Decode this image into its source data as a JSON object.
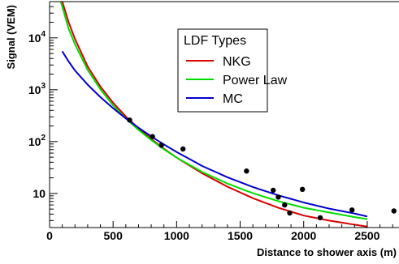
{
  "chart_data": {
    "type": "scatter",
    "xlabel": "Distance to shower axis (m)",
    "ylabel": "Signal (VEM)",
    "x_ticks": [
      {
        "value": 0,
        "label": "0"
      },
      {
        "value": 500,
        "label": "500"
      },
      {
        "value": 1000,
        "label": "1000"
      },
      {
        "value": 1500,
        "label": "1500"
      },
      {
        "value": 2000,
        "label": "2000"
      },
      {
        "value": 2500,
        "label": "2500"
      }
    ],
    "y_ticks": [
      {
        "value": 10,
        "label": "10"
      },
      {
        "value": 100,
        "label": "10^2"
      },
      {
        "value": 1000,
        "label": "10^3"
      },
      {
        "value": 10000,
        "label": "10^4"
      }
    ],
    "xlim": [
      0,
      2750
    ],
    "ylim": [
      2.2,
      50000
    ],
    "y_scale": "log",
    "grid": false,
    "legend": {
      "title": "LDF Types",
      "position": "top-center",
      "entries": [
        {
          "label": "NKG",
          "color": "#dd0000"
        },
        {
          "label": "Power Law",
          "color": "#00dd00"
        },
        {
          "label": "MC",
          "color": "#0000cc"
        }
      ]
    },
    "points": {
      "color": "#000000",
      "x": [
        630,
        810,
        880,
        1050,
        1550,
        1760,
        1800,
        1850,
        1890,
        1990,
        2130,
        2380,
        2710
      ],
      "y": [
        260,
        125,
        85,
        72,
        27,
        11.5,
        8.5,
        6,
        4.2,
        12,
        3.4,
        4.8,
        4.6
      ]
    },
    "series": [
      {
        "name": "NKG",
        "color": "#dd0000",
        "x": [
          80,
          100,
          150,
          200,
          300,
          400,
          500,
          600,
          700,
          800,
          900,
          1000,
          1200,
          1400,
          1600,
          1800,
          2000,
          2200,
          2400,
          2500
        ],
        "y": [
          72000,
          50000,
          20000,
          9500,
          2800,
          1150,
          560,
          305,
          180,
          112,
          73,
          49,
          24.5,
          13.5,
          8.1,
          5.3,
          3.75,
          3.0,
          2.5,
          2.3
        ]
      },
      {
        "name": "Power Law",
        "color": "#00dd00",
        "x": [
          80,
          100,
          150,
          200,
          300,
          400,
          500,
          600,
          700,
          800,
          900,
          1000,
          1200,
          1400,
          1600,
          1800,
          2000,
          2200,
          2400,
          2500
        ],
        "y": [
          60000,
          40000,
          15000,
          7500,
          2400,
          1020,
          500,
          280,
          168,
          107,
          71,
          49,
          26,
          15.5,
          10.1,
          7.1,
          5.3,
          4.3,
          3.5,
          3.2
        ]
      },
      {
        "name": "MC",
        "color": "#0000cc",
        "x": [
          100,
          150,
          200,
          300,
          400,
          500,
          600,
          700,
          800,
          900,
          1000,
          1200,
          1400,
          1600,
          1800,
          2000,
          2200,
          2400,
          2500
        ],
        "y": [
          5500,
          3500,
          2350,
          1250,
          720,
          440,
          280,
          185,
          126,
          88,
          63,
          34,
          20.5,
          13.3,
          9.2,
          6.7,
          5.1,
          4.1,
          3.6
        ]
      }
    ]
  }
}
